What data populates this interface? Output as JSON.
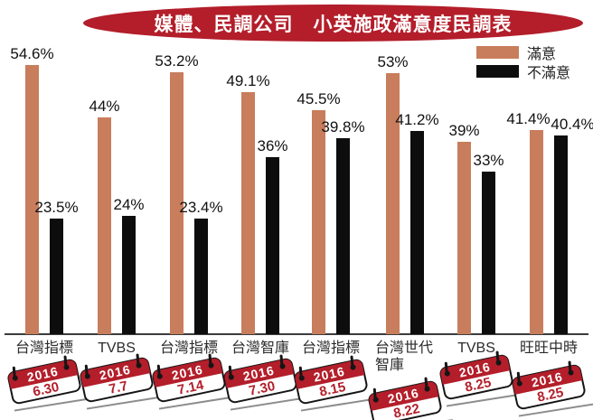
{
  "title": "媒體、民調公司　小英施政滿意度民調表",
  "colors": {
    "banner_red": "#b31e2a",
    "satisfied": "#c87d5c",
    "dissatisfied": "#0d0d0d"
  },
  "chart_data": {
    "type": "bar",
    "title": "媒體、民調公司 小英施政滿意度民調表",
    "categories": [
      "台灣指標",
      "TVBS",
      "台灣指標",
      "台灣智庫",
      "台灣指標",
      "台灣世代智庫",
      "TVBS",
      "旺旺中時"
    ],
    "category_lines": [
      [
        "台灣指標"
      ],
      [
        "TVBS"
      ],
      [
        "台灣指標"
      ],
      [
        "台灣智庫"
      ],
      [
        "台灣指標"
      ],
      [
        "台灣世代",
        "智庫"
      ],
      [
        "TVBS"
      ],
      [
        "旺旺中時"
      ]
    ],
    "dates": [
      {
        "year": "2016",
        "day": "6.30"
      },
      {
        "year": "2016",
        "day": "7.7"
      },
      {
        "year": "2016",
        "day": "7.14"
      },
      {
        "year": "2016",
        "day": "7.30"
      },
      {
        "year": "2016",
        "day": "8.15"
      },
      {
        "year": "2016",
        "day": "8.22"
      },
      {
        "year": "2016",
        "day": "8.25"
      },
      {
        "year": "2016",
        "day": "8.25"
      }
    ],
    "series": [
      {
        "name": "滿意",
        "color": "#c87d5c",
        "values": [
          54.6,
          44,
          53.2,
          49.1,
          45.5,
          53,
          39,
          41.4
        ]
      },
      {
        "name": "不滿意",
        "color": "#0d0d0d",
        "values": [
          23.5,
          24,
          23.4,
          36,
          39.8,
          41.2,
          33,
          40.4
        ]
      }
    ],
    "value_labels": [
      [
        "54.6%",
        "44%",
        "53.2%",
        "49.1%",
        "45.5%",
        "53%",
        "39%",
        "41.4%"
      ],
      [
        "23.5%",
        "24%",
        "23.4%",
        "36%",
        "39.8%",
        "41.2%",
        "33%",
        "40.4%"
      ]
    ],
    "ylim": [
      0,
      60
    ],
    "grid": false,
    "legend_position": "top-right"
  }
}
